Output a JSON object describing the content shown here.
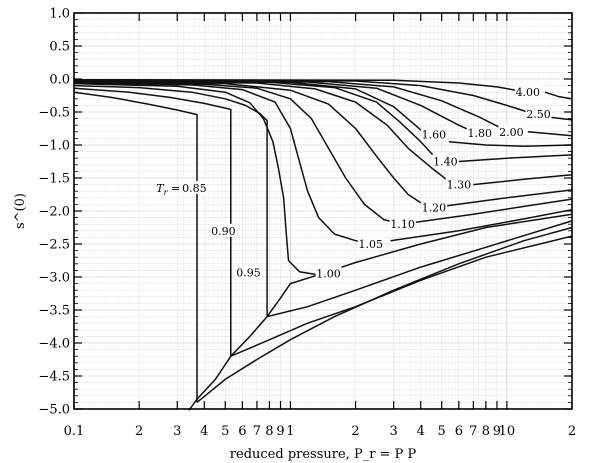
{
  "chart_data": {
    "type": "line",
    "title": "",
    "xlabel": "reduced pressure, P_r = P P",
    "ylabel": "s^(0)",
    "xscale": "log",
    "xlim": [
      0.1,
      20
    ],
    "ylim": [
      -5.0,
      1.0
    ],
    "grid": true,
    "legend": "none",
    "x_major_ticks": [
      {
        "v": 0.1,
        "label": "0.1"
      },
      {
        "v": 0.2,
        "label": "2"
      },
      {
        "v": 0.3,
        "label": "3"
      },
      {
        "v": 0.4,
        "label": "4"
      },
      {
        "v": 0.5,
        "label": "5"
      },
      {
        "v": 0.6,
        "label": "6"
      },
      {
        "v": 0.7,
        "label": "7"
      },
      {
        "v": 0.8,
        "label": "8"
      },
      {
        "v": 0.9,
        "label": "9"
      },
      {
        "v": 1,
        "label": "1"
      },
      {
        "v": 2,
        "label": "2"
      },
      {
        "v": 3,
        "label": "3"
      },
      {
        "v": 4,
        "label": "4"
      },
      {
        "v": 5,
        "label": "5"
      },
      {
        "v": 6,
        "label": "6"
      },
      {
        "v": 7,
        "label": "7"
      },
      {
        "v": 8,
        "label": "8"
      },
      {
        "v": 9,
        "label": "9"
      },
      {
        "v": 10,
        "label": "10"
      },
      {
        "v": 20,
        "label": "2"
      }
    ],
    "y_ticks": [
      {
        "v": 1.0,
        "label": "1.0"
      },
      {
        "v": 0.5,
        "label": "0.5"
      },
      {
        "v": 0.0,
        "label": "0.0"
      },
      {
        "v": -0.5,
        "label": "−0.5"
      },
      {
        "v": -1.0,
        "label": "−1.0"
      },
      {
        "v": -1.5,
        "label": "−1.5"
      },
      {
        "v": -2.0,
        "label": "−2.0"
      },
      {
        "v": -2.5,
        "label": "−2.5"
      },
      {
        "v": -3.0,
        "label": "−3.0"
      },
      {
        "v": -3.5,
        "label": "−3.5"
      },
      {
        "v": -4.0,
        "label": "−4.0"
      },
      {
        "v": -4.5,
        "label": "−4.5"
      },
      {
        "v": -5.0,
        "label": "−5.0"
      }
    ],
    "series": [
      {
        "name": "0.85",
        "label_at": [
          0.36,
          -1.65
        ],
        "points": [
          [
            0.1,
            -0.2
          ],
          [
            0.15,
            -0.28
          ],
          [
            0.22,
            -0.38
          ],
          [
            0.3,
            -0.47
          ],
          [
            0.37,
            -0.54
          ],
          [
            0.37,
            -4.9
          ]
        ]
      },
      {
        "name": "0.90",
        "label_at": [
          0.49,
          -2.3
        ],
        "points": [
          [
            0.1,
            -0.14
          ],
          [
            0.18,
            -0.2
          ],
          [
            0.28,
            -0.28
          ],
          [
            0.4,
            -0.37
          ],
          [
            0.53,
            -0.46
          ],
          [
            0.53,
            -4.2
          ]
        ]
      },
      {
        "name": "0.95",
        "label_at": [
          0.64,
          -2.93
        ],
        "points": [
          [
            0.1,
            -0.1
          ],
          [
            0.2,
            -0.13
          ],
          [
            0.35,
            -0.2
          ],
          [
            0.5,
            -0.3
          ],
          [
            0.62,
            -0.4
          ],
          [
            0.72,
            -0.52
          ],
          [
            0.78,
            -0.63
          ],
          [
            0.78,
            -3.6
          ]
        ]
      },
      {
        "name": "1.00",
        "label_at": [
          1.5,
          -2.95
        ],
        "points": [
          [
            0.1,
            -0.07
          ],
          [
            0.3,
            -0.11
          ],
          [
            0.5,
            -0.2
          ],
          [
            0.65,
            -0.36
          ],
          [
            0.75,
            -0.6
          ],
          [
            0.83,
            -0.95
          ],
          [
            0.88,
            -1.35
          ],
          [
            0.93,
            -1.8
          ],
          [
            0.96,
            -2.4
          ],
          [
            0.98,
            -2.75
          ],
          [
            1.1,
            -2.92
          ],
          [
            1.3,
            -2.96
          ],
          [
            1.45,
            -2.95
          ]
        ]
      },
      {
        "name": "1.05",
        "label_at": [
          2.35,
          -2.5
        ],
        "points": [
          [
            0.1,
            -0.06
          ],
          [
            0.35,
            -0.09
          ],
          [
            0.6,
            -0.16
          ],
          [
            0.85,
            -0.35
          ],
          [
            1.0,
            -0.75
          ],
          [
            1.1,
            -1.25
          ],
          [
            1.2,
            -1.7
          ],
          [
            1.35,
            -2.1
          ],
          [
            1.6,
            -2.35
          ],
          [
            2.0,
            -2.45
          ],
          [
            2.2,
            -2.47
          ]
        ]
      },
      {
        "name": "1.10",
        "label_at": [
          3.3,
          -2.2
        ],
        "points": [
          [
            0.1,
            -0.05
          ],
          [
            0.4,
            -0.08
          ],
          [
            0.7,
            -0.14
          ],
          [
            1.0,
            -0.3
          ],
          [
            1.25,
            -0.6
          ],
          [
            1.5,
            -1.05
          ],
          [
            1.8,
            -1.5
          ],
          [
            2.2,
            -1.9
          ],
          [
            2.7,
            -2.13
          ],
          [
            3.1,
            -2.18
          ]
        ]
      },
      {
        "name": "1.20",
        "label_at": [
          4.6,
          -1.95
        ],
        "points": [
          [
            0.1,
            -0.045
          ],
          [
            0.5,
            -0.07
          ],
          [
            1.0,
            -0.17
          ],
          [
            1.5,
            -0.38
          ],
          [
            2.0,
            -0.75
          ],
          [
            2.5,
            -1.17
          ],
          [
            3.0,
            -1.5
          ],
          [
            3.5,
            -1.75
          ],
          [
            4.2,
            -1.92
          ]
        ]
      },
      {
        "name": "1.30",
        "label_at": [
          6.0,
          -1.6
        ],
        "points": [
          [
            0.1,
            -0.04
          ],
          [
            0.7,
            -0.06
          ],
          [
            1.3,
            -0.15
          ],
          [
            2.0,
            -0.35
          ],
          [
            2.8,
            -0.7
          ],
          [
            3.5,
            -1.05
          ],
          [
            4.5,
            -1.35
          ],
          [
            5.4,
            -1.55
          ]
        ]
      },
      {
        "name": "1.40",
        "label_at": [
          5.2,
          -1.25
        ],
        "points": [
          [
            0.1,
            -0.035
          ],
          [
            0.8,
            -0.05
          ],
          [
            1.6,
            -0.13
          ],
          [
            2.5,
            -0.35
          ],
          [
            3.2,
            -0.65
          ],
          [
            4.0,
            -0.95
          ],
          [
            4.7,
            -1.2
          ]
        ]
      },
      {
        "name": "1.60",
        "label_at": [
          4.6,
          -0.84
        ],
        "points": [
          [
            0.1,
            -0.03
          ],
          [
            1.0,
            -0.05
          ],
          [
            2.0,
            -0.15
          ],
          [
            3.0,
            -0.42
          ],
          [
            4.1,
            -0.8
          ]
        ]
      },
      {
        "name": "1.80",
        "label_at": [
          7.5,
          -0.82
        ],
        "points": [
          [
            0.1,
            -0.025
          ],
          [
            1.2,
            -0.045
          ],
          [
            2.5,
            -0.14
          ],
          [
            4.0,
            -0.4
          ],
          [
            6.0,
            -0.7
          ],
          [
            6.8,
            -0.78
          ]
        ]
      },
      {
        "name": "2.00",
        "label_at": [
          10.5,
          -0.8
        ],
        "points": [
          [
            0.1,
            -0.02
          ],
          [
            1.5,
            -0.04
          ],
          [
            3.0,
            -0.12
          ],
          [
            5.0,
            -0.33
          ],
          [
            7.5,
            -0.58
          ],
          [
            9.5,
            -0.75
          ]
        ]
      },
      {
        "name": "2.50",
        "label_at": [
          14.0,
          -0.53
        ],
        "points": [
          [
            0.1,
            -0.015
          ],
          [
            2.0,
            -0.03
          ],
          [
            4.0,
            -0.1
          ],
          [
            7.0,
            -0.25
          ],
          [
            10.0,
            -0.4
          ],
          [
            12.5,
            -0.5
          ]
        ]
      },
      {
        "name": "4.00",
        "label_at": [
          12.5,
          -0.2
        ],
        "points": [
          [
            0.1,
            -0.01
          ],
          [
            3.0,
            -0.02
          ],
          [
            6.0,
            -0.06
          ],
          [
            9.0,
            -0.12
          ],
          [
            11.0,
            -0.17
          ]
        ]
      }
    ],
    "continuations": [
      {
        "of": "0.85",
        "points": [
          [
            15.0,
            -0.57
          ],
          [
            20.0,
            -0.62
          ]
        ]
      },
      {
        "of": "1.05",
        "points": [
          [
            2.9,
            -2.45
          ],
          [
            6.0,
            -2.3
          ],
          [
            12.0,
            -2.12
          ],
          [
            20.0,
            -1.98
          ]
        ]
      },
      {
        "of": "1.10",
        "points": [
          [
            3.8,
            -2.17
          ],
          [
            7.0,
            -2.05
          ],
          [
            12.0,
            -1.93
          ],
          [
            20.0,
            -1.82
          ]
        ]
      },
      {
        "of": "1.20",
        "points": [
          [
            5.3,
            -1.92
          ],
          [
            10.0,
            -1.8
          ],
          [
            20.0,
            -1.68
          ]
        ]
      },
      {
        "of": "1.30",
        "points": [
          [
            7.0,
            -1.6
          ],
          [
            12.0,
            -1.52
          ],
          [
            20.0,
            -1.45
          ]
        ]
      },
      {
        "of": "1.40",
        "points": [
          [
            6.0,
            -1.25
          ],
          [
            10.0,
            -1.2
          ],
          [
            20.0,
            -1.15
          ]
        ]
      },
      {
        "of": "1.60",
        "points": [
          [
            5.4,
            -0.95
          ],
          [
            8.0,
            -1.0
          ],
          [
            12.0,
            -1.02
          ],
          [
            20.0,
            -1.0
          ]
        ]
      },
      {
        "of": "2.00",
        "points": [
          [
            12.5,
            -0.8
          ],
          [
            20.0,
            -0.86
          ]
        ]
      },
      {
        "of": "4.00",
        "points": [
          [
            15.0,
            -0.2
          ],
          [
            17.5,
            -0.27
          ],
          [
            20.0,
            -0.3
          ]
        ]
      }
    ],
    "liquid_branches": [
      {
        "points": [
          [
            0.34,
            -5.02
          ],
          [
            0.37,
            -4.85
          ],
          [
            0.45,
            -4.55
          ],
          [
            0.53,
            -4.2
          ],
          [
            0.65,
            -3.9
          ],
          [
            0.78,
            -3.6
          ],
          [
            0.9,
            -3.32
          ],
          [
            1.0,
            -3.1
          ],
          [
            1.4,
            -2.95
          ],
          [
            2.0,
            -2.78
          ],
          [
            4.0,
            -2.5
          ],
          [
            8.0,
            -2.25
          ],
          [
            20.0,
            -2.05
          ]
        ]
      },
      {
        "points": [
          [
            0.37,
            -4.9
          ],
          [
            0.5,
            -4.55
          ],
          [
            0.7,
            -4.25
          ],
          [
            1.0,
            -3.95
          ],
          [
            1.6,
            -3.6
          ],
          [
            3.0,
            -3.2
          ],
          [
            6.0,
            -2.8
          ],
          [
            12.0,
            -2.45
          ],
          [
            20.0,
            -2.25
          ]
        ]
      },
      {
        "points": [
          [
            0.53,
            -4.2
          ],
          [
            0.8,
            -3.95
          ],
          [
            1.2,
            -3.7
          ],
          [
            2.0,
            -3.45
          ],
          [
            4.0,
            -3.05
          ],
          [
            8.0,
            -2.7
          ],
          [
            20.0,
            -2.38
          ]
        ]
      },
      {
        "points": [
          [
            0.78,
            -3.6
          ],
          [
            1.2,
            -3.45
          ],
          [
            2.0,
            -3.2
          ],
          [
            4.0,
            -2.85
          ],
          [
            8.0,
            -2.55
          ],
          [
            20.0,
            -2.15
          ]
        ]
      }
    ],
    "annotations": [
      {
        "text": "T",
        "sub": "r",
        "suffix": " = ",
        "at": [
          0.24,
          -1.65
        ]
      }
    ]
  }
}
